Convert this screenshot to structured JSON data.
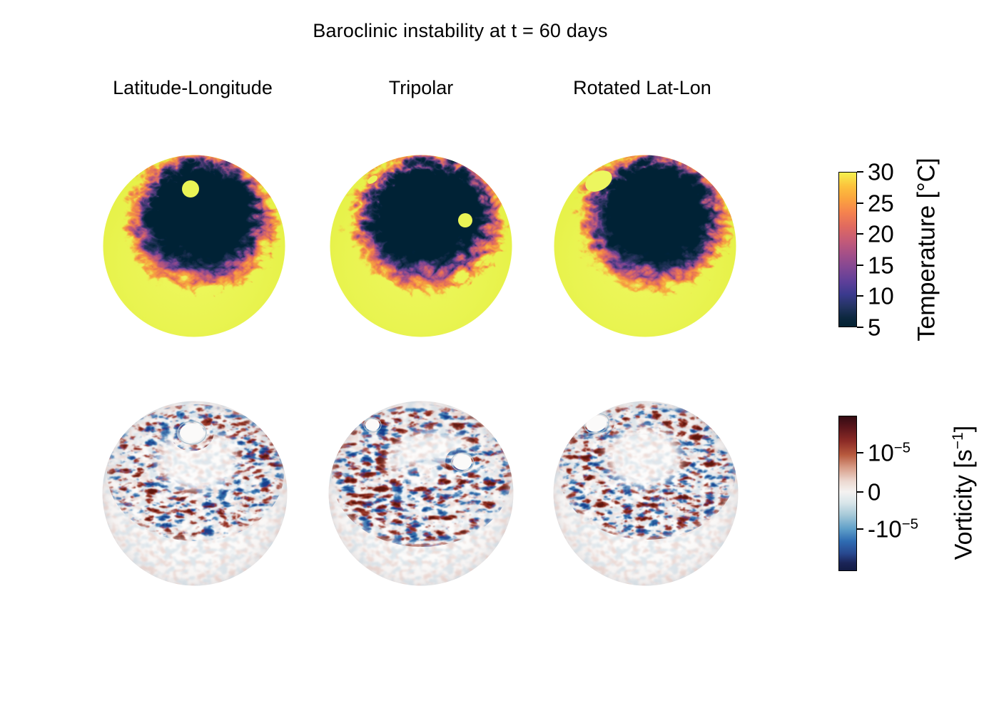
{
  "title": "Baroclinic instability at t = 60 days",
  "columns": [
    {
      "label": "Latitude-Longitude"
    },
    {
      "label": "Tripolar"
    },
    {
      "label": "Rotated Lat-Lon"
    }
  ],
  "colorbars": [
    {
      "id": "temperature",
      "label_pre": "Temperature [°C]",
      "label_exp": "",
      "label_post": "",
      "ticks": [
        {
          "base": "30",
          "exp": "",
          "frac": 0.0
        },
        {
          "base": "25",
          "exp": "",
          "frac": 0.2
        },
        {
          "base": "20",
          "exp": "",
          "frac": 0.4
        },
        {
          "base": "15",
          "exp": "",
          "frac": 0.6
        },
        {
          "base": "10",
          "exp": "",
          "frac": 0.8
        },
        {
          "base": "5",
          "exp": "",
          "frac": 1.0
        }
      ],
      "gradient_stops": [
        "#f5f14e 0%",
        "#fcc13c 9%",
        "#fba43e 17%",
        "#f5824e 26%",
        "#e06a5f 35%",
        "#c55b77 44%",
        "#a44f88 53%",
        "#814794 62%",
        "#5d3f99 71%",
        "#3b3a8e 79%",
        "#243463 87%",
        "#0d2840 94%",
        "#042333 100%"
      ]
    },
    {
      "id": "vorticity",
      "label_pre": "Vorticity [s",
      "label_exp": "−1",
      "label_post": "]",
      "ticks": [
        {
          "base": "10",
          "exp": "−5",
          "frac": 0.24
        },
        {
          "base": "0",
          "exp": "",
          "frac": 0.49
        },
        {
          "base": "-10",
          "exp": "−5",
          "frac": 0.73
        }
      ],
      "gradient_stops": [
        "#330b13 0%",
        "#5a151b 7%",
        "#8c2b26 16%",
        "#b85a3e 25%",
        "#d79b85 33%",
        "#ecd8d0 42%",
        "#f4f2f1 49%",
        "#d9e6ea 56%",
        "#a6c9d8 64%",
        "#5f9fc9 73%",
        "#2f6cb2 81%",
        "#28488f 89%",
        "#1b2559 95%",
        "#131c44 100%"
      ]
    }
  ],
  "panels": [
    {
      "grid": "Latitude-Longitude",
      "field": "Temperature"
    },
    {
      "grid": "Tripolar",
      "field": "Temperature"
    },
    {
      "grid": "Rotated Lat-Lon",
      "field": "Temperature"
    },
    {
      "grid": "Latitude-Longitude",
      "field": "Vorticity"
    },
    {
      "grid": "Tripolar",
      "field": "Vorticity"
    },
    {
      "grid": "Rotated Lat-Lon",
      "field": "Vorticity"
    }
  ],
  "chart_data": {
    "type": "heatmap",
    "title": "Baroclinic instability at t = 60 days",
    "layout": "2 rows x 3 columns of orthographic sphere views, shared vertical colorbar per row on the right",
    "columns": [
      "Latitude-Longitude",
      "Tripolar",
      "Rotated Lat-Lon"
    ],
    "rows": [
      {
        "field": "Temperature",
        "unit": "°C",
        "colormap": "thermal (dark navy → indigo → magenta → orange → yellow)",
        "colorbar_ticks": [
          30,
          25,
          20,
          15,
          10,
          5
        ],
        "range": [
          5,
          30
        ],
        "description": "Uniform warm (~30 °C, yellow) low and mid latitudes surrounding a cold (~5 °C, dark navy) polar cap; turbulent baroclinic eddy filaments (orange/purple) ring the cap edge. Small warm yellow spots mark each grid's pole locations: one round spot near the pole (Lat-Lon), two small spots (Tripolar), one larger tilted oval spot (Rotated Lat-Lon)."
      },
      {
        "field": "Vorticity",
        "unit": "s⁻¹",
        "colormap": "balance (dark navy → blue → white → red → dark maroon)",
        "colorbar_ticks": [
          "10⁻⁵",
          "0",
          "-10⁻⁵"
        ],
        "range": [
          "-10⁻⁵",
          "10⁻⁵"
        ],
        "description": "Near-zero (white) vorticity over most of the sphere with an annular band of alternating positive (red) and negative (blue) vorticity filaments around the polar cap; quiet white holes appear at the grid pole locations (one for Lat-Lon, two for Tripolar, one oval for Rotated Lat-Lon)."
      }
    ]
  }
}
